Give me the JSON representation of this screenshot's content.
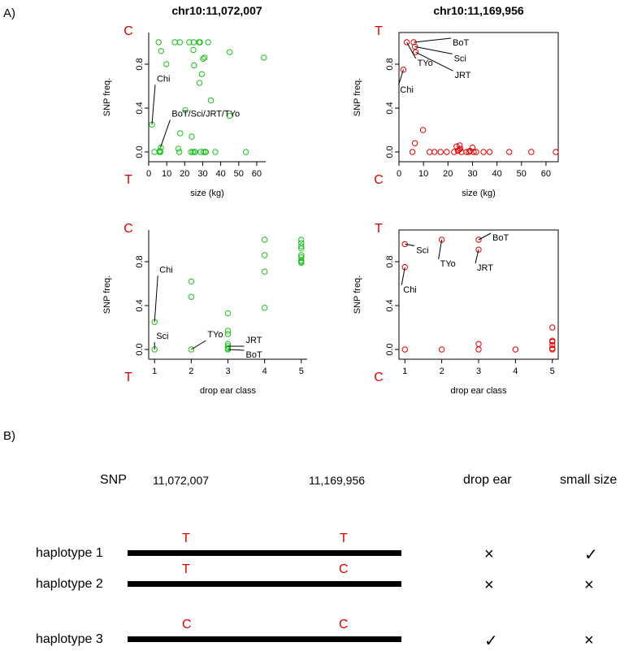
{
  "panel_a": {
    "label": "A)"
  },
  "panel_b": {
    "label": "B)"
  },
  "colors": {
    "green": "#19c119",
    "red": "#e00000",
    "axis": "#000000"
  },
  "chart_data": [
    {
      "type": "scatter",
      "title": "chr10:11,072,007",
      "xlabel": "size (kg)",
      "ylabel": "SNP freq.",
      "xlim": [
        0,
        65
      ],
      "ylim": [
        0,
        1
      ],
      "xticks": [
        "0",
        "10",
        "20",
        "30",
        "40",
        "50",
        "60"
      ],
      "yticks": [
        "0.0",
        "0.4",
        "0.8"
      ],
      "top_allele": "C",
      "bottom_allele": "T",
      "color": "green",
      "x": [
        1.8,
        3.2,
        5.5,
        6.0,
        6.5,
        6.8,
        6.9,
        6.2,
        9.8,
        14.5,
        16.5,
        17.3,
        17.5,
        17.0,
        20.3,
        22.5,
        23.5,
        23.9,
        24.5,
        24.8,
        25.0,
        25.5,
        25.2,
        25.7,
        28.0,
        28.5,
        28.9,
        28.2,
        29.5,
        30.2,
        30.5,
        31.0,
        31.5,
        31.8,
        33.0,
        34.5,
        37.0,
        45.0,
        45.0,
        54.0,
        64.0
      ],
      "y": [
        0.25,
        0.0,
        1.0,
        0.0,
        0.0,
        0.04,
        0.92,
        0.01,
        0.8,
        1.0,
        0.03,
        1.0,
        0.17,
        0.0,
        0.38,
        1.0,
        0.0,
        0.14,
        0.0,
        0.93,
        1.0,
        0.0,
        0.79,
        0.0,
        1.0,
        1.0,
        0.0,
        0.63,
        0.71,
        0.85,
        0.0,
        0.86,
        0.0,
        0.0,
        1.0,
        0.47,
        0.0,
        0.33,
        0.91,
        0.0,
        0.86
      ],
      "annotations": [
        {
          "text": "Chi",
          "x": 1.8,
          "y": 0.25
        },
        {
          "text": "BoT/Sci/JRT/TYo",
          "x": 6.5,
          "y": 0.04
        }
      ]
    },
    {
      "type": "scatter",
      "title": "chr10:11,169,956",
      "xlabel": "size (kg)",
      "ylabel": "SNP freq.",
      "xlim": [
        0,
        65
      ],
      "ylim": [
        0,
        1
      ],
      "xticks": [
        "0",
        "10",
        "20",
        "30",
        "40",
        "50",
        "60"
      ],
      "yticks": [
        "0.0",
        "0.4",
        "0.8"
      ],
      "top_allele": "T",
      "bottom_allele": "C",
      "color": "red",
      "x": [
        1.8,
        3.2,
        5.5,
        6.0,
        6.5,
        6.8,
        6.5,
        9.8,
        12.5,
        14.5,
        17.0,
        19.5,
        22.5,
        23.5,
        24.0,
        24.5,
        24.8,
        25.0,
        25.5,
        27.5,
        28.5,
        29.0,
        30.0,
        30.5,
        31.5,
        34.5,
        37.0,
        45.0,
        54.0,
        64.0
      ],
      "y": [
        0.75,
        1.0,
        0.0,
        1.0,
        0.96,
        0.91,
        0.08,
        0.2,
        0.0,
        0.0,
        0.0,
        0.0,
        0.0,
        0.05,
        0.01,
        0.02,
        0.06,
        0.03,
        0.0,
        0.0,
        0.0,
        0.01,
        0.04,
        0.0,
        0.0,
        0.0,
        0.0,
        0.0,
        0.0,
        0.0
      ],
      "annotations": [
        {
          "text": "Chi",
          "x": 1.8,
          "y": 0.75
        },
        {
          "text": "TYo",
          "x": 3.2,
          "y": 1.0
        },
        {
          "text": "BoT",
          "x": 6.0,
          "y": 1.0
        },
        {
          "text": "Sci",
          "x": 6.5,
          "y": 0.96
        },
        {
          "text": "JRT",
          "x": 6.8,
          "y": 0.91
        }
      ]
    },
    {
      "type": "scatter",
      "title": "",
      "xlabel": "drop ear class",
      "ylabel": "SNP freq.",
      "xlim": [
        0.84,
        5.16
      ],
      "ylim": [
        0,
        1
      ],
      "xticks": [
        "1",
        "2",
        "3",
        "4",
        "5"
      ],
      "yticks": [
        "0.0",
        "0.4",
        "0.8"
      ],
      "top_allele": "C",
      "bottom_allele": "T",
      "color": "green",
      "x": [
        1,
        1,
        2,
        2,
        2,
        3,
        3,
        3,
        3,
        3,
        3,
        3,
        4,
        4,
        4,
        4,
        5,
        5,
        5,
        5,
        5,
        5,
        5,
        5,
        5
      ],
      "y": [
        0.25,
        0.0,
        0.62,
        0.48,
        0.0,
        0.33,
        0.17,
        0.14,
        0.05,
        0.03,
        0.01,
        0.0,
        1.0,
        0.86,
        0.71,
        0.38,
        1.0,
        0.97,
        0.94,
        0.92,
        0.86,
        0.84,
        0.81,
        0.8,
        0.79
      ],
      "annotations": [
        {
          "text": "Chi",
          "x": 1,
          "y": 0.25
        },
        {
          "text": "Sci",
          "x": 1,
          "y": 0.0
        },
        {
          "text": "TYo",
          "x": 2,
          "y": 0.0
        },
        {
          "text": "JRT",
          "x": 3,
          "y": 0.03
        },
        {
          "text": "BoT",
          "x": 3,
          "y": 0.0
        }
      ]
    },
    {
      "type": "scatter",
      "title": "",
      "xlabel": "drop ear class",
      "ylabel": "SNP freq.",
      "xlim": [
        0.84,
        5.16
      ],
      "ylim": [
        0,
        1
      ],
      "xticks": [
        "1",
        "2",
        "3",
        "4",
        "5"
      ],
      "yticks": [
        "0.0",
        "0.4",
        "0.8"
      ],
      "top_allele": "T",
      "bottom_allele": "C",
      "color": "red",
      "x": [
        1,
        1,
        1,
        2,
        2,
        3,
        3,
        3,
        3,
        4,
        5,
        5,
        5,
        5,
        5,
        5
      ],
      "y": [
        0.96,
        0.75,
        0.0,
        1.0,
        0.0,
        1.0,
        0.91,
        0.05,
        0.0,
        0.0,
        0.2,
        0.08,
        0.07,
        0.04,
        0.01,
        0.0
      ],
      "annotations": [
        {
          "text": "Sci",
          "x": 1,
          "y": 0.96
        },
        {
          "text": "Chi",
          "x": 1,
          "y": 0.75
        },
        {
          "text": "TYo",
          "x": 2,
          "y": 1.0
        },
        {
          "text": "BoT",
          "x": 3,
          "y": 1.0
        },
        {
          "text": "JRT",
          "x": 3,
          "y": 0.91
        }
      ]
    }
  ],
  "haplotypes": {
    "header": {
      "snp": "SNP",
      "pos1": "11,072,007",
      "pos2": "11,169,956",
      "drop_ear": "drop ear",
      "small_size": "small size"
    },
    "rows": [
      {
        "name": "haplotype 1",
        "allele1": "T",
        "allele2": "T",
        "drop_ear": "×",
        "small_size": "✓"
      },
      {
        "name": "haplotype 2",
        "allele1": "T",
        "allele2": "C",
        "drop_ear": "×",
        "small_size": "×"
      },
      {
        "name": "haplotype 3",
        "allele1": "C",
        "allele2": "C",
        "drop_ear": "✓",
        "small_size": "×"
      }
    ]
  }
}
